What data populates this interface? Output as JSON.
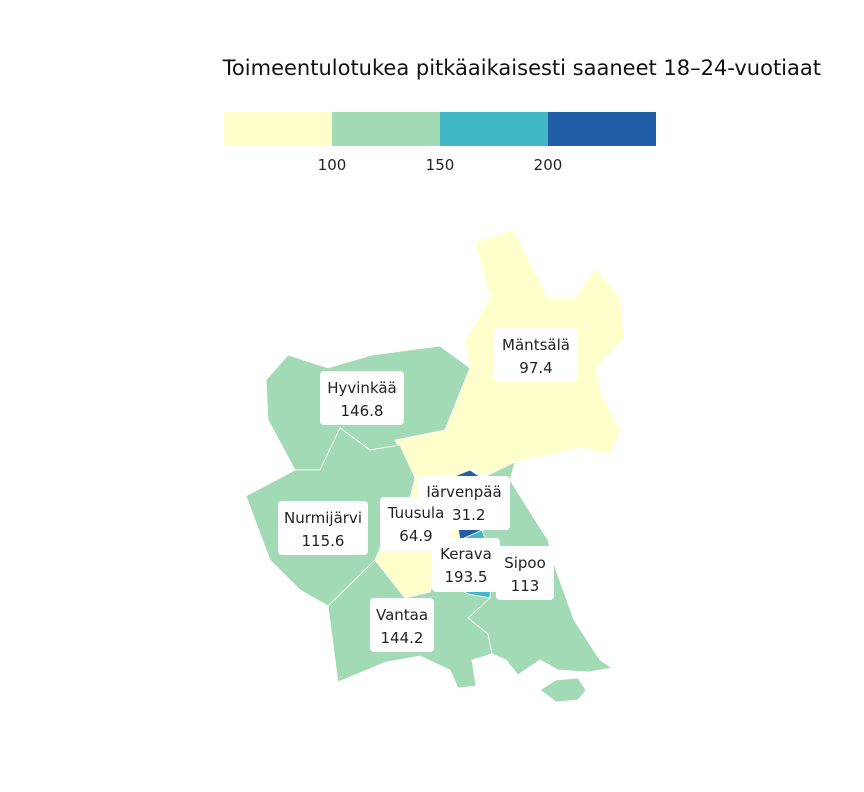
{
  "title": "Toimeentulotukea pitkäaikaisesti saaneet 18–24-vuotiaat",
  "legend": {
    "bins": [
      {
        "color": "#ffffcc"
      },
      {
        "color": "#a1dab4"
      },
      {
        "color": "#41b6c4"
      },
      {
        "color": "#225ea8"
      }
    ],
    "breaks": [
      "100",
      "150",
      "200"
    ]
  },
  "regions": [
    {
      "name": "Mäntsälä",
      "value": "97.4",
      "color": "#ffffcc"
    },
    {
      "name": "Hyvinkää",
      "value": "146.8",
      "color": "#a1dab4"
    },
    {
      "name": "Nurmijärvi",
      "value": "115.6",
      "color": "#a1dab4"
    },
    {
      "name": "Tuusula",
      "value": "64.9",
      "color": "#ffffcc"
    },
    {
      "name": "Järvenpää",
      "value": "231.2",
      "color": "#225ea8"
    },
    {
      "name": "Kerava",
      "value": "193.5",
      "color": "#41b6c4"
    },
    {
      "name": "Sipoo",
      "value": "113",
      "color": "#a1dab4"
    },
    {
      "name": "Vantaa",
      "value": "144.2",
      "color": "#a1dab4"
    }
  ]
}
